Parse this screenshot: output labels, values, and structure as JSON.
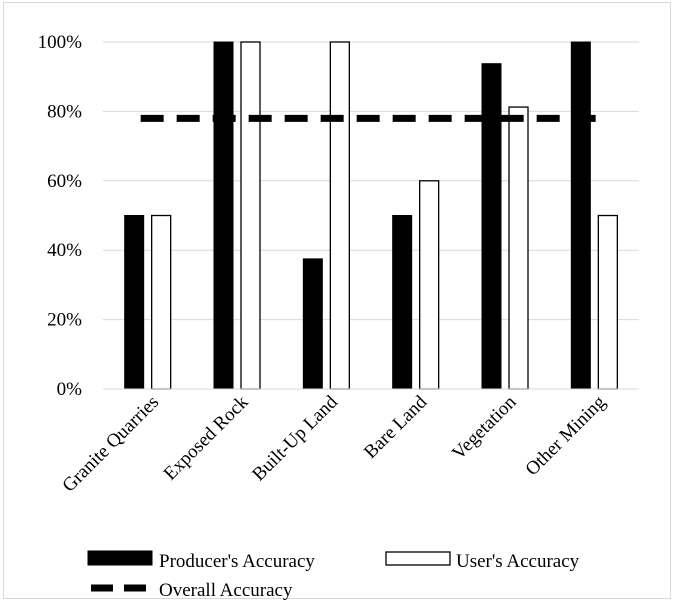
{
  "chart_data": {
    "type": "bar",
    "categories": [
      "Granite Quarries",
      "Exposed Rock",
      "Built-Up Land",
      "Bare Land",
      "Vegetation",
      "Other Mining"
    ],
    "series": [
      {
        "name": "Producer's Accuracy",
        "values": [
          50,
          100,
          37.5,
          50,
          93.75,
          100
        ],
        "color": "#000000",
        "fill": "solid"
      },
      {
        "name": "User's Accuracy",
        "values": [
          50,
          100,
          100,
          60,
          81.25,
          50
        ],
        "color": "#000000",
        "fill": "hollow"
      }
    ],
    "reference_lines": [
      {
        "name": "Overall Accuracy",
        "value": 78,
        "style": "dashed",
        "color": "#000000"
      }
    ],
    "yticks": [
      "0%",
      "20%",
      "40%",
      "60%",
      "80%",
      "100%"
    ],
    "ylim": [
      0,
      100
    ],
    "grid": true,
    "gridColor": "#d9d9d9",
    "legend_position": "bottom",
    "title": "",
    "xlabel": "",
    "ylabel": ""
  }
}
